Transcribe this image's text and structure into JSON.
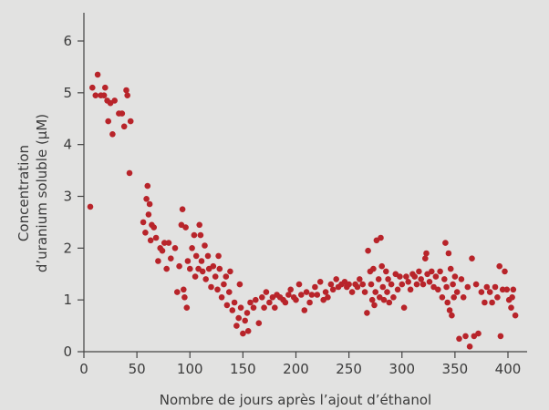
{
  "chart_data": {
    "type": "scatter",
    "xlabel": "Nombre de jours après l’ajout d’éthanol",
    "ylabel_line1": "Concentration",
    "ylabel_line2": "d’uranium soluble (µM)",
    "xlim": [
      0,
      420
    ],
    "ylim": [
      0,
      6.5
    ],
    "x_ticks": [
      0,
      50,
      100,
      150,
      200,
      250,
      300,
      350,
      400
    ],
    "y_ticks": [
      0,
      1,
      2,
      3,
      4,
      5,
      6
    ],
    "marker_color": "#b8242a",
    "background_color": "#e2e2e1",
    "grid": false,
    "series": [
      {
        "points": [
          [
            6,
            2.8
          ],
          [
            8,
            5.1
          ],
          [
            11,
            4.95
          ],
          [
            13,
            5.35
          ],
          [
            16,
            4.95
          ],
          [
            19,
            4.95
          ],
          [
            20,
            5.1
          ],
          [
            22,
            4.85
          ],
          [
            23,
            4.45
          ],
          [
            25,
            4.8
          ],
          [
            27,
            4.2
          ],
          [
            29,
            4.85
          ],
          [
            33,
            4.6
          ],
          [
            36,
            4.6
          ],
          [
            38,
            4.35
          ],
          [
            40,
            5.05
          ],
          [
            41,
            4.95
          ],
          [
            43,
            3.45
          ],
          [
            44,
            4.45
          ],
          [
            56,
            2.5
          ],
          [
            58,
            2.3
          ],
          [
            59,
            2.95
          ],
          [
            60,
            3.2
          ],
          [
            61,
            2.65
          ],
          [
            62,
            2.85
          ],
          [
            63,
            2.15
          ],
          [
            64,
            2.45
          ],
          [
            66,
            2.4
          ],
          [
            68,
            2.2
          ],
          [
            70,
            1.75
          ],
          [
            72,
            2.0
          ],
          [
            74,
            1.95
          ],
          [
            76,
            2.1
          ],
          [
            78,
            1.6
          ],
          [
            80,
            2.1
          ],
          [
            82,
            1.8
          ],
          [
            86,
            2.0
          ],
          [
            88,
            1.15
          ],
          [
            90,
            1.65
          ],
          [
            92,
            2.45
          ],
          [
            93,
            2.75
          ],
          [
            94,
            1.2
          ],
          [
            95,
            1.05
          ],
          [
            96,
            2.4
          ],
          [
            97,
            0.85
          ],
          [
            98,
            1.75
          ],
          [
            100,
            1.6
          ],
          [
            102,
            2.0
          ],
          [
            104,
            2.25
          ],
          [
            105,
            1.45
          ],
          [
            106,
            1.85
          ],
          [
            108,
            1.6
          ],
          [
            109,
            2.45
          ],
          [
            110,
            2.25
          ],
          [
            111,
            1.75
          ],
          [
            112,
            1.55
          ],
          [
            114,
            2.05
          ],
          [
            115,
            1.4
          ],
          [
            117,
            1.85
          ],
          [
            118,
            1.6
          ],
          [
            120,
            1.25
          ],
          [
            122,
            1.65
          ],
          [
            124,
            1.45
          ],
          [
            126,
            1.2
          ],
          [
            127,
            1.85
          ],
          [
            128,
            1.6
          ],
          [
            130,
            1.05
          ],
          [
            132,
            1.3
          ],
          [
            134,
            1.45
          ],
          [
            135,
            0.9
          ],
          [
            137,
            1.15
          ],
          [
            138,
            1.55
          ],
          [
            140,
            0.8
          ],
          [
            142,
            0.95
          ],
          [
            144,
            0.5
          ],
          [
            146,
            0.65
          ],
          [
            147,
            1.3
          ],
          [
            148,
            0.85
          ],
          [
            150,
            0.35
          ],
          [
            152,
            0.6
          ],
          [
            154,
            0.75
          ],
          [
            155,
            0.4
          ],
          [
            157,
            0.95
          ],
          [
            160,
            0.85
          ],
          [
            162,
            1.0
          ],
          [
            165,
            0.55
          ],
          [
            168,
            1.05
          ],
          [
            170,
            0.85
          ],
          [
            172,
            1.15
          ],
          [
            175,
            0.95
          ],
          [
            178,
            1.05
          ],
          [
            180,
            0.85
          ],
          [
            182,
            1.1
          ],
          [
            185,
            1.05
          ],
          [
            188,
            1.0
          ],
          [
            190,
            0.95
          ],
          [
            193,
            1.1
          ],
          [
            195,
            1.2
          ],
          [
            198,
            1.05
          ],
          [
            200,
            1.0
          ],
          [
            203,
            1.3
          ],
          [
            205,
            1.1
          ],
          [
            208,
            0.8
          ],
          [
            210,
            1.15
          ],
          [
            213,
            0.95
          ],
          [
            215,
            1.1
          ],
          [
            218,
            1.25
          ],
          [
            220,
            1.1
          ],
          [
            223,
            1.35
          ],
          [
            226,
            1.0
          ],
          [
            228,
            1.15
          ],
          [
            230,
            1.05
          ],
          [
            233,
            1.3
          ],
          [
            235,
            1.2
          ],
          [
            238,
            1.4
          ],
          [
            240,
            1.25
          ],
          [
            243,
            1.3
          ],
          [
            246,
            1.35
          ],
          [
            248,
            1.25
          ],
          [
            250,
            1.3
          ],
          [
            253,
            1.15
          ],
          [
            256,
            1.3
          ],
          [
            258,
            1.25
          ],
          [
            260,
            1.4
          ],
          [
            263,
            1.3
          ],
          [
            265,
            1.15
          ],
          [
            267,
            0.75
          ],
          [
            268,
            1.95
          ],
          [
            270,
            1.55
          ],
          [
            271,
            1.3
          ],
          [
            272,
            1.0
          ],
          [
            273,
            1.6
          ],
          [
            274,
            0.9
          ],
          [
            275,
            1.15
          ],
          [
            276,
            2.15
          ],
          [
            278,
            1.4
          ],
          [
            279,
            1.05
          ],
          [
            280,
            2.2
          ],
          [
            281,
            1.65
          ],
          [
            282,
            1.25
          ],
          [
            283,
            1.0
          ],
          [
            285,
            1.55
          ],
          [
            286,
            1.15
          ],
          [
            287,
            1.4
          ],
          [
            288,
            0.95
          ],
          [
            290,
            1.3
          ],
          [
            292,
            1.05
          ],
          [
            294,
            1.5
          ],
          [
            296,
            1.2
          ],
          [
            298,
            1.45
          ],
          [
            300,
            1.3
          ],
          [
            302,
            0.85
          ],
          [
            304,
            1.45
          ],
          [
            306,
            1.35
          ],
          [
            308,
            1.2
          ],
          [
            310,
            1.5
          ],
          [
            312,
            1.45
          ],
          [
            314,
            1.3
          ],
          [
            316,
            1.55
          ],
          [
            318,
            1.4
          ],
          [
            320,
            1.3
          ],
          [
            322,
            1.8
          ],
          [
            323,
            1.9
          ],
          [
            324,
            1.5
          ],
          [
            326,
            1.35
          ],
          [
            328,
            1.55
          ],
          [
            330,
            1.25
          ],
          [
            332,
            1.45
          ],
          [
            334,
            1.2
          ],
          [
            336,
            1.55
          ],
          [
            338,
            1.05
          ],
          [
            340,
            1.4
          ],
          [
            341,
            2.1
          ],
          [
            342,
            1.25
          ],
          [
            343,
            0.95
          ],
          [
            344,
            1.9
          ],
          [
            345,
            0.8
          ],
          [
            346,
            1.6
          ],
          [
            347,
            0.7
          ],
          [
            348,
            1.3
          ],
          [
            349,
            1.05
          ],
          [
            350,
            1.45
          ],
          [
            352,
            1.15
          ],
          [
            354,
            0.25
          ],
          [
            356,
            1.4
          ],
          [
            358,
            1.05
          ],
          [
            360,
            0.3
          ],
          [
            362,
            1.25
          ],
          [
            364,
            0.1
          ],
          [
            366,
            1.8
          ],
          [
            368,
            0.3
          ],
          [
            370,
            1.3
          ],
          [
            372,
            0.35
          ],
          [
            375,
            1.15
          ],
          [
            378,
            0.95
          ],
          [
            380,
            1.25
          ],
          [
            383,
            1.15
          ],
          [
            385,
            0.95
          ],
          [
            388,
            1.25
          ],
          [
            390,
            1.05
          ],
          [
            392,
            1.65
          ],
          [
            393,
            0.3
          ],
          [
            395,
            1.2
          ],
          [
            397,
            1.55
          ],
          [
            399,
            1.2
          ],
          [
            401,
            1.0
          ],
          [
            403,
            0.85
          ],
          [
            404,
            1.05
          ],
          [
            405,
            1.2
          ],
          [
            407,
            0.7
          ]
        ]
      }
    ]
  }
}
